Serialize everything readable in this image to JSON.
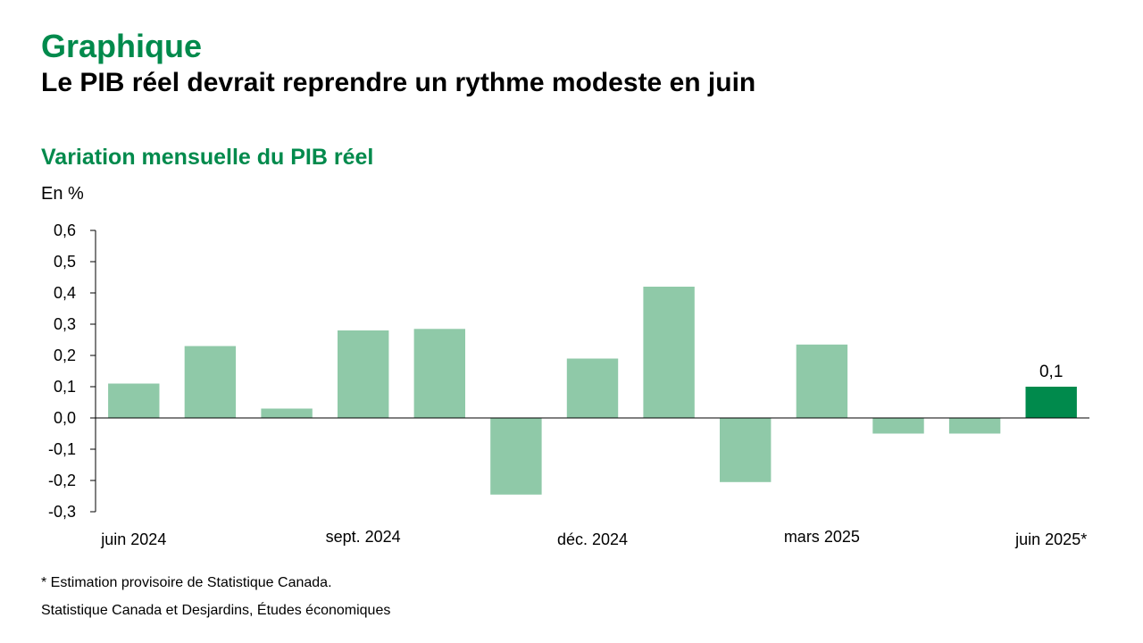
{
  "heading": {
    "kicker": "Graphique",
    "title": "Le PIB réel devrait reprendre un rythme modeste en juin"
  },
  "chart_data": {
    "type": "bar",
    "title": "Variation mensuelle du PIB réel",
    "ylabel": "En %",
    "ylim": [
      -0.3,
      0.6
    ],
    "yticks": [
      "0,6",
      "0,5",
      "0,4",
      "0,3",
      "0,2",
      "0,1",
      "0,0",
      "-0,1",
      "-0,2",
      "-0,3"
    ],
    "x_labels": [
      {
        "index": 0,
        "text": "juin 2024"
      },
      {
        "index": 3,
        "text": "sept. 2024"
      },
      {
        "index": 6,
        "text": "déc. 2024"
      },
      {
        "index": 9,
        "text": "mars 2025"
      },
      {
        "index": 12,
        "text": "juin 2025*"
      }
    ],
    "values": [
      0.11,
      0.23,
      0.03,
      0.28,
      0.285,
      -0.245,
      0.19,
      0.42,
      -0.205,
      0.235,
      -0.05,
      -0.05,
      0.1
    ],
    "highlight_index": 12,
    "data_labels": [
      {
        "index": 12,
        "text": "0,1"
      }
    ],
    "colors": {
      "bar": "#8fc9a8",
      "highlight": "#008a4c"
    },
    "grid": false
  },
  "notes": {
    "estimate": "* Estimation provisoire de Statistique Canada.",
    "source": "Statistique Canada et Desjardins, Études économiques"
  }
}
